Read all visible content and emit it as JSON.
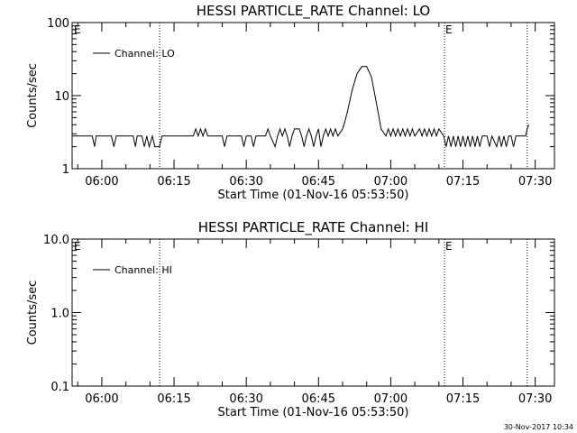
{
  "chart_data": [
    {
      "type": "line",
      "title": "HESSI PARTICLE_RATE Channel: LO",
      "xlabel": "Start Time (01-Nov-16 05:53:50)",
      "ylabel": "Counts/sec",
      "y_scale": "log",
      "ylim": [
        1,
        100
      ],
      "xlim": [
        "05:53:50",
        "07:34:00"
      ],
      "y_ticks": [
        "1",
        "10",
        "100"
      ],
      "x_ticks": [
        "06:00",
        "06:15",
        "06:30",
        "06:45",
        "07:00",
        "07:15",
        "07:30"
      ],
      "legend": "top-left",
      "markers": [
        {
          "time": "06:12:00",
          "label": ""
        },
        {
          "time": "07:11:10",
          "label": "E"
        },
        {
          "time": "07:28:20",
          "label": ""
        }
      ],
      "corner_label": "E",
      "series": [
        {
          "name": "Channel: LO",
          "points": [
            [
              "05:53:50",
              2.8
            ],
            [
              "05:58:00",
              2.8
            ],
            [
              "05:58:30",
              2.0
            ],
            [
              "05:58:50",
              2.8
            ],
            [
              "06:02:00",
              2.8
            ],
            [
              "06:02:30",
              2.0
            ],
            [
              "06:03:00",
              2.8
            ],
            [
              "06:06:30",
              2.8
            ],
            [
              "06:07:00",
              2.0
            ],
            [
              "06:07:20",
              2.8
            ],
            [
              "06:08:20",
              2.8
            ],
            [
              "06:08:50",
              2.0
            ],
            [
              "06:09:20",
              2.8
            ],
            [
              "06:09:50",
              2.0
            ],
            [
              "06:10:30",
              2.8
            ],
            [
              "06:11:00",
              2.0
            ],
            [
              "06:12:00",
              2.0
            ],
            [
              "06:12:30",
              2.8
            ],
            [
              "06:19:00",
              2.8
            ],
            [
              "06:19:30",
              3.5
            ],
            [
              "06:20:00",
              2.8
            ],
            [
              "06:20:30",
              3.5
            ],
            [
              "06:21:00",
              2.8
            ],
            [
              "06:21:30",
              3.5
            ],
            [
              "06:22:00",
              2.8
            ],
            [
              "06:25:00",
              2.8
            ],
            [
              "06:25:30",
              2.0
            ],
            [
              "06:26:00",
              2.8
            ],
            [
              "06:29:00",
              2.8
            ],
            [
              "06:29:30",
              2.0
            ],
            [
              "06:30:00",
              2.8
            ],
            [
              "06:31:00",
              2.8
            ],
            [
              "06:31:30",
              2.0
            ],
            [
              "06:32:00",
              2.8
            ],
            [
              "06:34:00",
              2.8
            ],
            [
              "06:34:30",
              3.5
            ],
            [
              "06:35:00",
              2.8
            ],
            [
              "06:36:00",
              2.0
            ],
            [
              "06:36:30",
              2.8
            ],
            [
              "06:37:00",
              3.5
            ],
            [
              "06:37:30",
              2.8
            ],
            [
              "06:38:00",
              3.5
            ],
            [
              "06:38:30",
              2.8
            ],
            [
              "06:39:00",
              2.0
            ],
            [
              "06:39:30",
              2.8
            ],
            [
              "06:40:00",
              3.5
            ],
            [
              "06:41:00",
              3.5
            ],
            [
              "06:41:30",
              2.8
            ],
            [
              "06:42:00",
              2.0
            ],
            [
              "06:42:30",
              2.8
            ],
            [
              "06:43:00",
              3.5
            ],
            [
              "06:43:30",
              2.8
            ],
            [
              "06:44:00",
              2.0
            ],
            [
              "06:44:30",
              2.8
            ],
            [
              "06:45:00",
              3.5
            ],
            [
              "06:45:30",
              2.0
            ],
            [
              "06:46:00",
              2.8
            ],
            [
              "06:46:30",
              3.5
            ],
            [
              "06:47:00",
              2.8
            ],
            [
              "06:47:30",
              3.5
            ],
            [
              "06:48:00",
              2.8
            ],
            [
              "06:48:30",
              3.5
            ],
            [
              "06:49:00",
              2.8
            ],
            [
              "06:50:00",
              3.5
            ],
            [
              "06:50:30",
              4.5
            ],
            [
              "06:51:00",
              6.0
            ],
            [
              "06:52:00",
              12.0
            ],
            [
              "06:53:00",
              20.0
            ],
            [
              "06:54:00",
              25.0
            ],
            [
              "06:55:00",
              25.0
            ],
            [
              "06:56:00",
              18.0
            ],
            [
              "06:57:00",
              8.0
            ],
            [
              "06:58:00",
              3.5
            ],
            [
              "06:59:00",
              2.8
            ],
            [
              "06:59:30",
              3.5
            ],
            [
              "07:00:00",
              2.8
            ],
            [
              "07:00:30",
              3.5
            ],
            [
              "07:01:00",
              2.8
            ],
            [
              "07:01:30",
              3.5
            ],
            [
              "07:02:00",
              2.8
            ],
            [
              "07:02:30",
              3.5
            ],
            [
              "07:03:00",
              2.8
            ],
            [
              "07:03:30",
              3.5
            ],
            [
              "07:04:00",
              2.8
            ],
            [
              "07:04:30",
              3.5
            ],
            [
              "07:05:00",
              2.8
            ],
            [
              "07:06:00",
              3.5
            ],
            [
              "07:06:30",
              2.8
            ],
            [
              "07:07:00",
              3.5
            ],
            [
              "07:07:30",
              2.8
            ],
            [
              "07:08:00",
              3.5
            ],
            [
              "07:08:30",
              2.8
            ],
            [
              "07:09:00",
              3.5
            ],
            [
              "07:09:30",
              2.8
            ],
            [
              "07:10:00",
              3.5
            ],
            [
              "07:11:00",
              2.8
            ],
            [
              "07:11:30",
              2.0
            ],
            [
              "07:12:00",
              2.8
            ],
            [
              "07:12:30",
              2.0
            ],
            [
              "07:13:00",
              2.8
            ],
            [
              "07:13:30",
              2.0
            ],
            [
              "07:14:00",
              2.8
            ],
            [
              "07:14:30",
              2.0
            ],
            [
              "07:15:00",
              2.8
            ],
            [
              "07:15:30",
              2.0
            ],
            [
              "07:16:00",
              2.8
            ],
            [
              "07:16:30",
              2.0
            ],
            [
              "07:17:00",
              2.8
            ],
            [
              "07:17:30",
              2.0
            ],
            [
              "07:18:00",
              2.8
            ],
            [
              "07:18:30",
              2.0
            ],
            [
              "07:19:00",
              2.8
            ],
            [
              "07:20:00",
              2.8
            ],
            [
              "07:20:30",
              2.0
            ],
            [
              "07:21:00",
              2.8
            ],
            [
              "07:22:00",
              2.0
            ],
            [
              "07:22:30",
              2.8
            ],
            [
              "07:23:00",
              2.0
            ],
            [
              "07:23:30",
              2.8
            ],
            [
              "07:24:00",
              2.0
            ],
            [
              "07:24:30",
              2.8
            ],
            [
              "07:25:00",
              2.8
            ],
            [
              "07:25:30",
              2.0
            ],
            [
              "07:26:00",
              2.8
            ],
            [
              "07:28:00",
              2.8
            ],
            [
              "07:28:20",
              3.5
            ],
            [
              "07:28:40",
              4.0
            ]
          ]
        }
      ]
    },
    {
      "type": "line",
      "title": "HESSI PARTICLE_RATE Channel: HI",
      "xlabel": "Start Time (01-Nov-16 05:53:50)",
      "ylabel": "Counts/sec",
      "y_scale": "log",
      "ylim": [
        0.1,
        10.0
      ],
      "xlim": [
        "05:53:50",
        "07:34:00"
      ],
      "y_ticks": [
        "0.1",
        "1.0",
        "10.0"
      ],
      "x_ticks": [
        "06:00",
        "06:15",
        "06:30",
        "06:45",
        "07:00",
        "07:15",
        "07:30"
      ],
      "legend": "top-left",
      "markers": [
        {
          "time": "06:12:00",
          "label": ""
        },
        {
          "time": "07:11:10",
          "label": "E"
        },
        {
          "time": "07:28:20",
          "label": ""
        }
      ],
      "corner_label": "E",
      "series": [
        {
          "name": "Channel: HI",
          "points": []
        }
      ]
    }
  ],
  "footer": {
    "timestamp": "30-Nov-2017 10:34"
  }
}
